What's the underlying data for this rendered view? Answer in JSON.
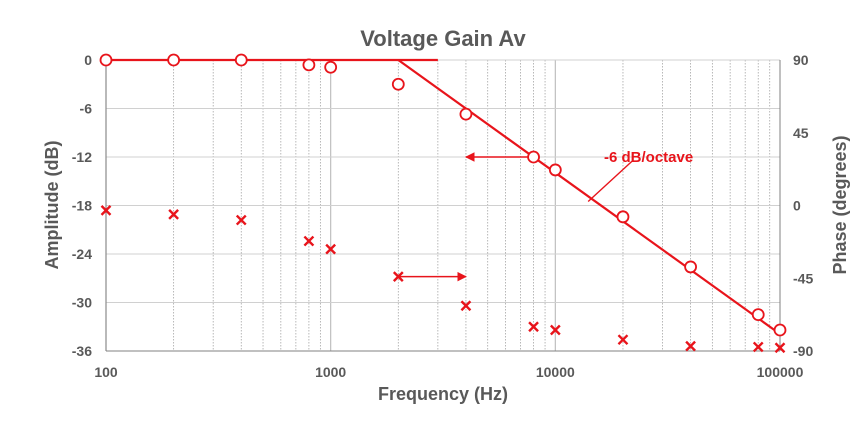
{
  "chart_data": {
    "type": "scatter",
    "title": "Voltage Gain Av",
    "xlabel": "Frequency (Hz)",
    "ylabel_left": "Amplitude (dB)",
    "ylabel_right": "Phase (degrees)",
    "x_scale": "log",
    "xlim": [
      100,
      100000
    ],
    "ylim_left": [
      -36,
      0
    ],
    "ylim_right": [
      -90,
      90
    ],
    "x_ticks": [
      100,
      1000,
      10000,
      100000
    ],
    "x_tick_labels": [
      "100",
      "1000",
      "10000",
      "100000"
    ],
    "y_left_ticks": [
      0,
      -6,
      -12,
      -18,
      -24,
      -30,
      -36
    ],
    "y_left_tick_labels": [
      "0",
      "-6",
      "-12",
      "-18",
      "-24",
      "-30",
      "-36"
    ],
    "y_right_ticks": [
      90,
      45,
      0,
      -45,
      -90
    ],
    "y_right_tick_labels": [
      "90",
      "45",
      "0",
      "-45",
      "-90"
    ],
    "grid": {
      "vertical_minor": true,
      "horizontal": true
    },
    "color": "#e8141b",
    "series": [
      {
        "marker": "circle",
        "axis": "left",
        "x": [
          100,
          200,
          400,
          800,
          1000,
          2000,
          4000,
          8000,
          10000,
          20000,
          40000,
          80000,
          100000
        ],
        "y": [
          0,
          0,
          0,
          -0.6,
          -0.9,
          -3,
          -6.7,
          -12,
          -13.6,
          -19.4,
          -25.6,
          -31.5,
          -33.4
        ]
      },
      {
        "marker": "x",
        "axis": "right",
        "x": [
          100,
          200,
          400,
          800,
          1000,
          2000,
          4000,
          8000,
          10000,
          20000,
          40000,
          80000,
          100000
        ],
        "y": [
          -3,
          -5.5,
          -9,
          -22,
          -27,
          -44,
          -62,
          -75,
          -77,
          -83,
          -87,
          -87.5,
          -88
        ]
      }
    ],
    "asymptotes": [
      {
        "x": [
          100,
          3000
        ],
        "y": [
          0,
          0
        ]
      },
      {
        "x": [
          2000,
          100000
        ],
        "y": [
          0,
          -33.9
        ]
      }
    ],
    "annotations": [
      {
        "text": "-6 dB/octave",
        "leader_from": [
          22000,
          -12.5
        ],
        "leader_to": [
          14000,
          -17.5
        ]
      },
      {
        "text": "",
        "arrow_from": [
          8000,
          -12
        ],
        "arrow_to": [
          4000,
          -12
        ],
        "axis": "left"
      },
      {
        "text": "",
        "arrow_from": [
          2000,
          -44
        ],
        "arrow_to": [
          4000,
          -44
        ],
        "axis": "right"
      }
    ]
  }
}
